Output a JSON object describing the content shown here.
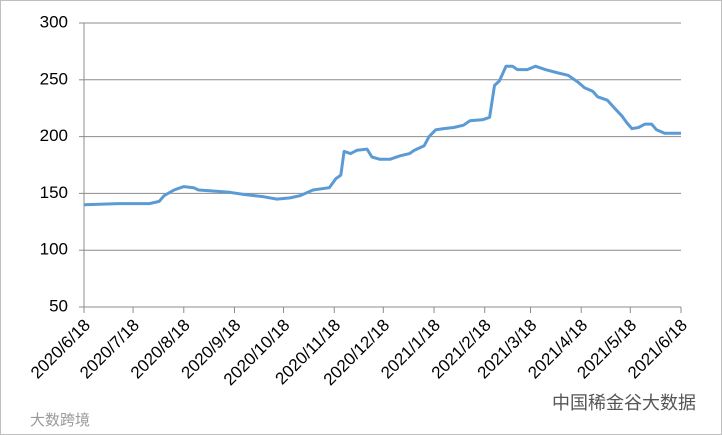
{
  "chart_data": {
    "type": "line",
    "x": [
      "2020/6/18",
      "2020/7/9",
      "2020/7/28",
      "2020/8/3",
      "2020/8/6",
      "2020/8/12",
      "2020/8/18",
      "2020/8/24",
      "2020/8/27",
      "2020/9/6",
      "2020/9/15",
      "2020/9/24",
      "2020/10/6",
      "2020/10/14",
      "2020/10/22",
      "2020/10/28",
      "2020/11/5",
      "2020/11/15",
      "2020/11/19",
      "2020/11/22",
      "2020/11/24",
      "2020/11/28",
      "2020/12/2",
      "2020/12/8",
      "2020/12/11",
      "2020/12/16",
      "2020/12/22",
      "2020/12/28",
      "2021/1/3",
      "2021/1/6",
      "2021/1/12",
      "2021/1/15",
      "2021/1/19",
      "2021/1/24",
      "2021/1/30",
      "2021/2/5",
      "2021/2/9",
      "2021/2/17",
      "2021/2/21",
      "2021/2/24",
      "2021/2/27",
      "2021/3/3",
      "2021/3/7",
      "2021/3/10",
      "2021/3/16",
      "2021/3/21",
      "2021/3/27",
      "2021/4/4",
      "2021/4/10",
      "2021/4/16",
      "2021/4/20",
      "2021/4/25",
      "2021/4/28",
      "2021/5/4",
      "2021/5/9",
      "2021/5/13",
      "2021/5/16",
      "2021/5/19",
      "2021/5/23",
      "2021/5/27",
      "2021/5/31",
      "2021/6/3",
      "2021/6/8",
      "2021/6/18"
    ],
    "series": [
      {
        "color": "#5b9bd5",
        "values": [
          140,
          141,
          141,
          143,
          148,
          153,
          156,
          155,
          153,
          152,
          151,
          149,
          147,
          145,
          146,
          148,
          153,
          155,
          163,
          166,
          187,
          185,
          188,
          189,
          182,
          180,
          180,
          183,
          185,
          188,
          192,
          200,
          206,
          207,
          208,
          210,
          214,
          215,
          217,
          245,
          249,
          262,
          262,
          259,
          259,
          262,
          259,
          256,
          254,
          248,
          243,
          240,
          235,
          232,
          224,
          218,
          212,
          207,
          208,
          211,
          211,
          206,
          203,
          203
        ]
      }
    ],
    "xlim": [
      "2020/6/18",
      "2021/6/18"
    ],
    "xticks": [
      "2020/6/18",
      "2020/7/18",
      "2020/8/18",
      "2020/9/18",
      "2020/10/18",
      "2020/11/18",
      "2020/12/18",
      "2021/1/18",
      "2021/2/18",
      "2021/3/18",
      "2021/4/18",
      "2021/5/18",
      "2021/6/18"
    ],
    "ylim": [
      50,
      300
    ],
    "yticks": [
      50,
      100,
      150,
      200,
      250,
      300
    ],
    "grid": true,
    "annotations": [
      "大数跨境",
      "中国稀金谷大数据"
    ]
  }
}
